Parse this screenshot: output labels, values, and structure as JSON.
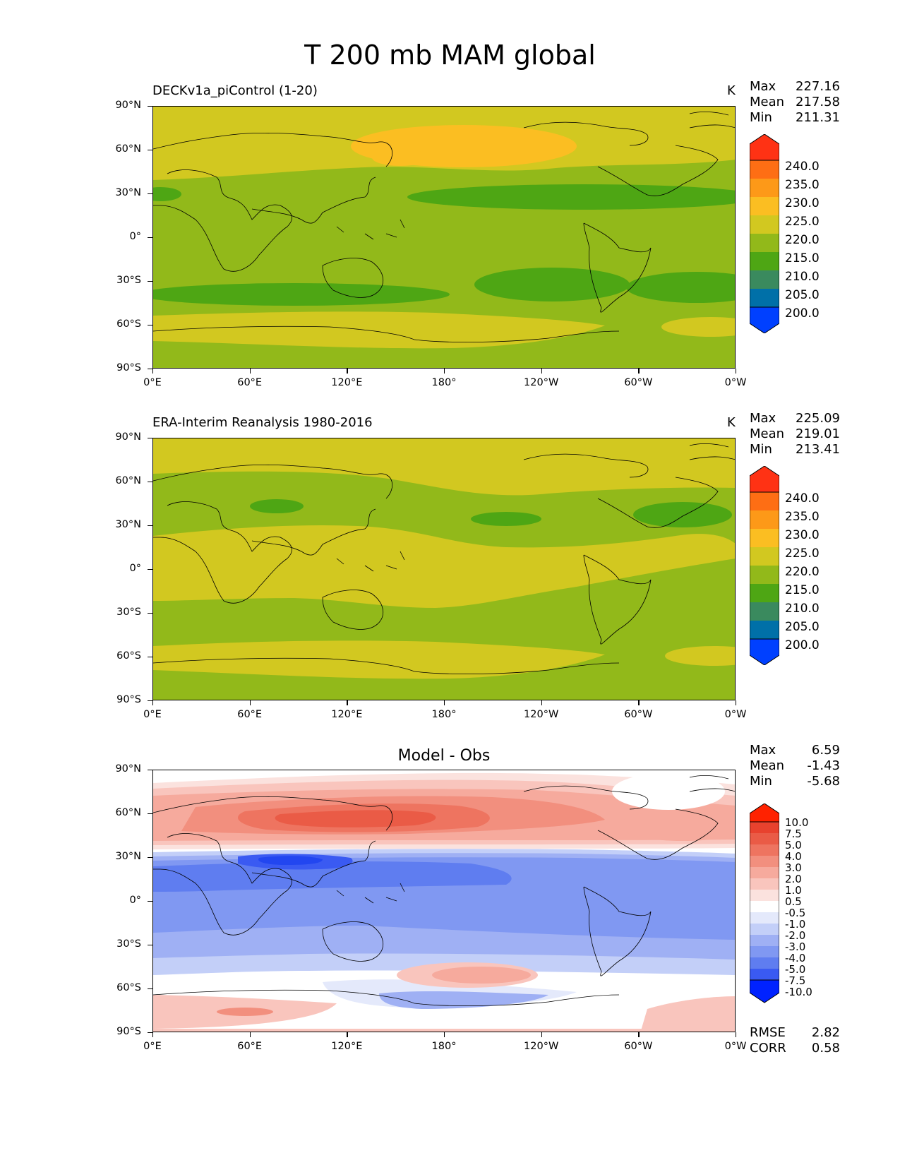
{
  "title": "T 200 mb MAM global",
  "axes": {
    "yticks": [
      "90°N",
      "60°N",
      "30°N",
      "0°",
      "30°S",
      "60°S",
      "90°S"
    ],
    "xticks": [
      "0°E",
      "60°E",
      "120°E",
      "180°",
      "120°W",
      "60°W",
      "0°W"
    ]
  },
  "panels": [
    {
      "title": "DECKv1a_piControl (1-20)",
      "units": "K",
      "stats": [
        {
          "label": "Max",
          "value": "227.16"
        },
        {
          "label": "Mean",
          "value": "217.58"
        },
        {
          "label": "Min",
          "value": "211.31"
        }
      ],
      "colorbar_labels": [
        "240.0",
        "235.0",
        "230.0",
        "225.0",
        "220.0",
        "215.0",
        "210.0",
        "205.0",
        "200.0"
      ]
    },
    {
      "title": "ERA-Interim Reanalysis 1980-2016",
      "units": "K",
      "stats": [
        {
          "label": "Max",
          "value": "225.09"
        },
        {
          "label": "Mean",
          "value": "219.01"
        },
        {
          "label": "Min",
          "value": "213.41"
        }
      ],
      "colorbar_labels": [
        "240.0",
        "235.0",
        "230.0",
        "225.0",
        "220.0",
        "215.0",
        "210.0",
        "205.0",
        "200.0"
      ]
    },
    {
      "title": "Model - Obs",
      "units": "",
      "stats": [
        {
          "label": "Max",
          "value": "6.59"
        },
        {
          "label": "Mean",
          "value": "-1.43"
        },
        {
          "label": "Min",
          "value": "-5.68"
        }
      ],
      "colorbar_labels": [
        "10.0",
        "7.5",
        "5.0",
        "4.0",
        "3.0",
        "2.0",
        "1.0",
        "0.5",
        "-0.5",
        "-1.0",
        "-2.0",
        "-3.0",
        "-4.0",
        "-5.0",
        "-7.5",
        "-10.0"
      ],
      "metrics": [
        {
          "label": "RMSE",
          "value": "2.82"
        },
        {
          "label": "CORR",
          "value": "0.58"
        }
      ]
    }
  ],
  "colors": {
    "abs_scale": [
      "#0040ff",
      "#0070a8",
      "#3a8a5e",
      "#4ea614",
      "#92b91a",
      "#d2c820",
      "#fbbe22",
      "#fd9918",
      "#fe6e14",
      "#ff3214"
    ],
    "diff_scale": [
      "#0022ff",
      "#3a5af2",
      "#5f7df0",
      "#8098f2",
      "#9fb0f4",
      "#c3cff8",
      "#e4e9fb",
      "#ffffff",
      "#fbe2de",
      "#f9c5bd",
      "#f6aa9d",
      "#f28f7e",
      "#ee7460",
      "#ea5b46",
      "#e8422e",
      "#ff2200"
    ]
  }
}
